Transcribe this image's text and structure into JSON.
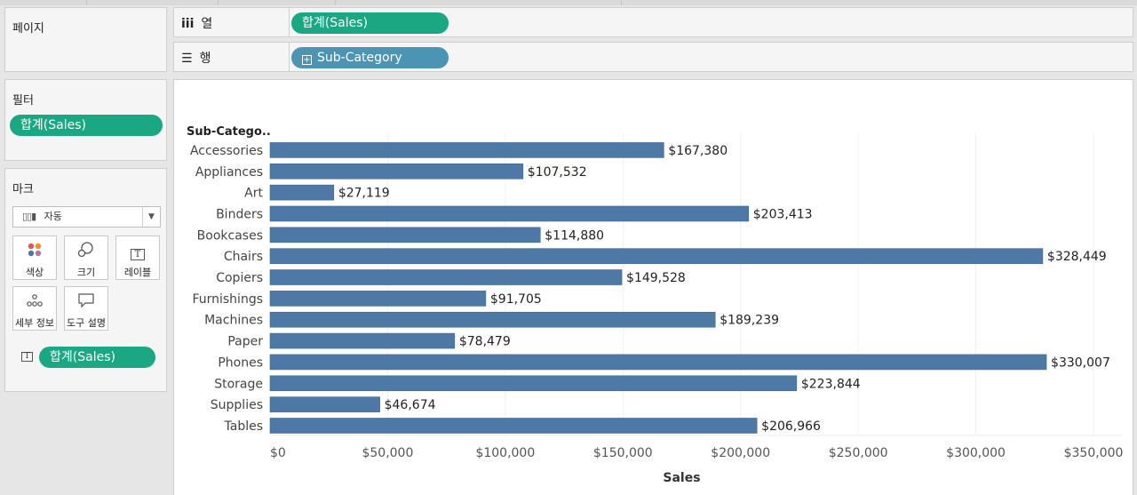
{
  "left": {
    "pages_title": "페이지",
    "filters_title": "필터",
    "filter_pill": "합계(Sales)",
    "marks_title": "마크",
    "mark_type": "자동",
    "mark_buttons": [
      {
        "label": "색상",
        "icon": "color-dots-icon"
      },
      {
        "label": "크기",
        "icon": "size-icon"
      },
      {
        "label": "레이블",
        "icon": "label-icon"
      },
      {
        "label": "세부 정보",
        "icon": "detail-icon"
      },
      {
        "label": "도구 설명",
        "icon": "tooltip-icon"
      }
    ],
    "mark_pill": "합계(Sales)",
    "mark_pill_icon_text": "T"
  },
  "shelves": {
    "columns_label": "열",
    "columns_pill": "합계(Sales)",
    "rows_label": "행",
    "rows_pill": "Sub-Category"
  },
  "chart_data": {
    "type": "bar",
    "orientation": "horizontal",
    "header": "Sub-Catego..",
    "categories": [
      "Accessories",
      "Appliances",
      "Art",
      "Binders",
      "Bookcases",
      "Chairs",
      "Copiers",
      "Furnishings",
      "Machines",
      "Paper",
      "Phones",
      "Storage",
      "Supplies",
      "Tables"
    ],
    "values": [
      167380,
      107532,
      27119,
      203413,
      114880,
      328449,
      149528,
      91705,
      189239,
      78479,
      330007,
      223844,
      46674,
      206966
    ],
    "value_labels": [
      "$167,380",
      "$107,532",
      "$27,119",
      "$203,413",
      "$114,880",
      "$328,449",
      "$149,528",
      "$91,705",
      "$189,239",
      "$78,479",
      "$330,007",
      "$223,844",
      "$46,674",
      "$206,966"
    ],
    "ticks": [
      0,
      50000,
      100000,
      150000,
      200000,
      250000,
      300000,
      350000
    ],
    "tick_labels": [
      "$0",
      "$50,000",
      "$100,000",
      "$150,000",
      "$200,000",
      "$250,000",
      "$300,000",
      "$350,000"
    ],
    "xlabel": "Sales",
    "xlim": [
      0,
      350000
    ],
    "bar_color": "#4e79a7",
    "grid": true
  }
}
